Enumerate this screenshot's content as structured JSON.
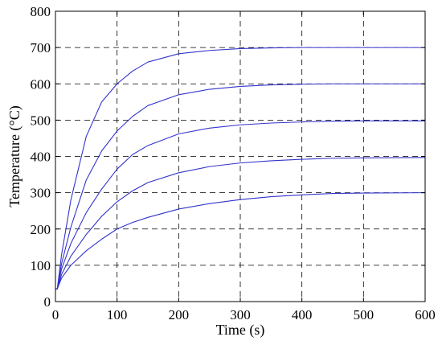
{
  "chart_data": {
    "type": "line",
    "xlabel": "Time (s)",
    "ylabel": "Temperature (°C)",
    "xlim": [
      0,
      600
    ],
    "ylim": [
      0,
      800
    ],
    "xticks": [
      0,
      100,
      200,
      300,
      400,
      500,
      600
    ],
    "yticks": [
      0,
      100,
      200,
      300,
      400,
      500,
      600,
      700,
      800
    ],
    "grid": true,
    "line_color": "#3333cc",
    "series": [
      {
        "x": [
          0,
          3,
          10,
          25,
          50,
          75,
          100,
          125,
          150,
          200,
          250,
          300,
          350,
          400,
          450,
          500,
          600
        ],
        "values": [
          35,
          35,
          130,
          280,
          455,
          550,
          600,
          635,
          660,
          683,
          692,
          697,
          699,
          700,
          700,
          700,
          700
        ]
      },
      {
        "x": [
          0,
          3,
          10,
          25,
          50,
          75,
          100,
          125,
          150,
          200,
          250,
          300,
          350,
          400,
          450,
          500,
          600
        ],
        "values": [
          35,
          35,
          105,
          205,
          335,
          415,
          470,
          510,
          540,
          570,
          585,
          593,
          597,
          599,
          600,
          600,
          600
        ]
      },
      {
        "x": [
          0,
          3,
          10,
          25,
          50,
          75,
          100,
          125,
          150,
          200,
          250,
          300,
          350,
          400,
          450,
          500,
          600
        ],
        "values": [
          35,
          35,
          90,
          160,
          245,
          310,
          365,
          405,
          430,
          462,
          478,
          487,
          492,
          495,
          497,
          498,
          498
        ]
      },
      {
        "x": [
          0,
          3,
          10,
          25,
          50,
          75,
          100,
          125,
          150,
          200,
          250,
          300,
          350,
          400,
          450,
          500,
          600
        ],
        "values": [
          35,
          35,
          75,
          125,
          185,
          235,
          275,
          305,
          328,
          355,
          372,
          382,
          388,
          392,
          395,
          396,
          397
        ]
      },
      {
        "x": [
          0,
          3,
          10,
          25,
          50,
          75,
          100,
          125,
          150,
          200,
          250,
          300,
          350,
          400,
          450,
          500,
          600
        ],
        "values": [
          35,
          35,
          65,
          100,
          140,
          172,
          200,
          218,
          232,
          255,
          270,
          281,
          289,
          294,
          298,
          299,
          300
        ]
      }
    ]
  }
}
